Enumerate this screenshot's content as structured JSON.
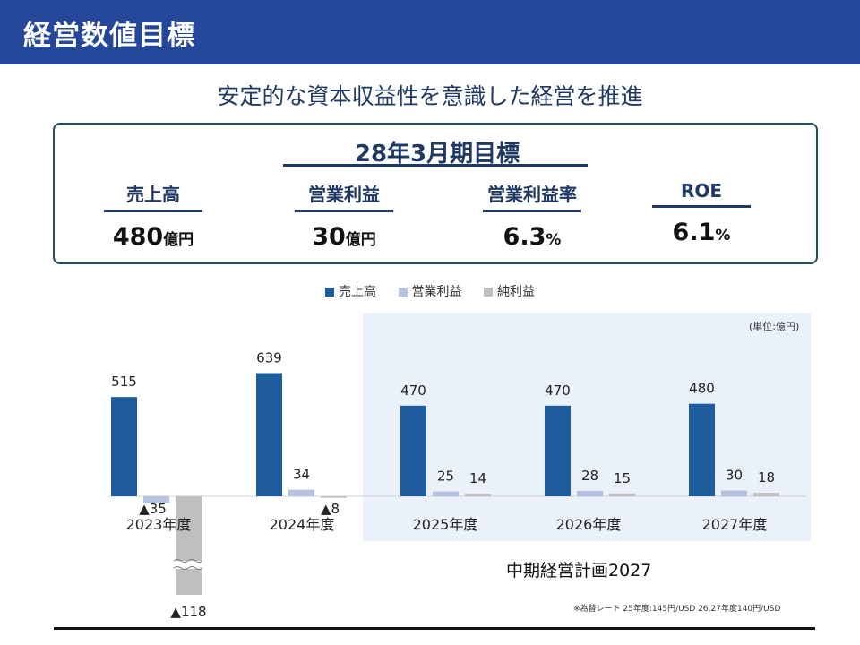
{
  "header": {
    "title": "経営数値目標"
  },
  "subtitle": "安定的な資本収益性を意識した経営を推進",
  "target": {
    "title": "28年3月期目標",
    "kpis": [
      {
        "label": "売上高",
        "value": "480",
        "unit": "億円"
      },
      {
        "label": "営業利益",
        "value": "30",
        "unit": "億円"
      },
      {
        "label": "営業利益率",
        "value": "6.3",
        "unit": "%"
      },
      {
        "label": "ROE",
        "value": "6.1",
        "unit": "%"
      }
    ]
  },
  "unit_note": "(単位:億円)",
  "plan_label": "中期経営計画2027",
  "footnote": "※為替レート 25年度:145円/USD 26,27年度140円/USD",
  "chart_data": {
    "type": "bar",
    "categories": [
      "2023年度",
      "2024年度",
      "2025年度",
      "2026年度",
      "2027年度"
    ],
    "series": [
      {
        "name": "売上高",
        "values": [
          515,
          639,
          470,
          470,
          480
        ],
        "labels": [
          "515",
          "639",
          "470",
          "470",
          "480"
        ],
        "color": "#1f5c9e"
      },
      {
        "name": "営業利益",
        "values": [
          -35,
          34,
          25,
          28,
          30
        ],
        "labels": [
          "▲35",
          "34",
          "25",
          "28",
          "30"
        ],
        "color": "#b4c1e0"
      },
      {
        "name": "純利益",
        "values": [
          -118,
          -8,
          14,
          15,
          18
        ],
        "labels": [
          "▲118",
          "▲8",
          "14",
          "15",
          "18"
        ],
        "color": "#bfbfbf"
      }
    ],
    "axis_break": {
      "series": "純利益",
      "category": "2023年度"
    },
    "highlight_categories": [
      "2025年度",
      "2026年度",
      "2027年度"
    ],
    "highlight_color": "#eaf1fb",
    "legend": "top-center",
    "grid": false
  }
}
